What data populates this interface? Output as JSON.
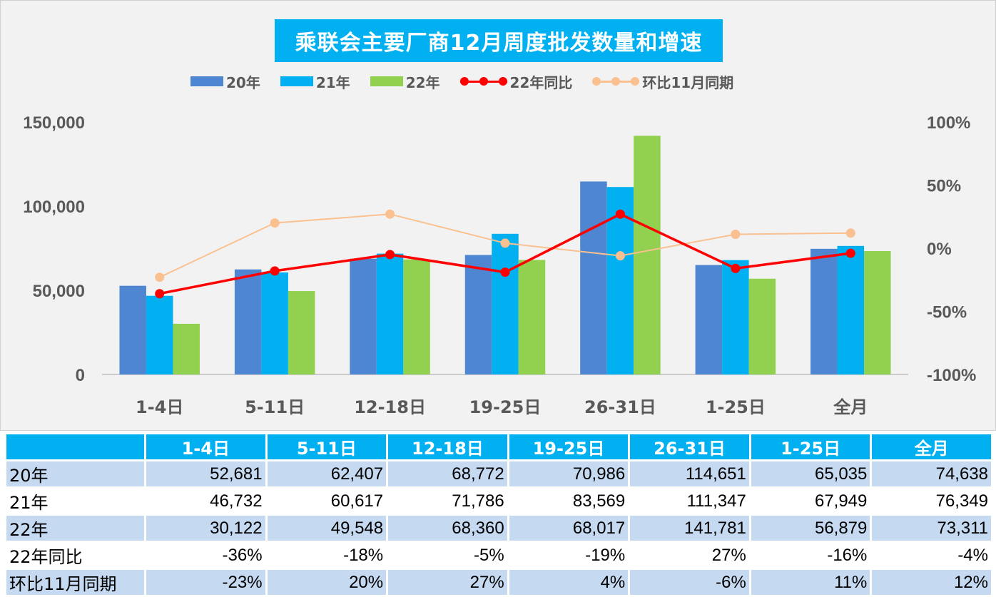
{
  "title": "乘联会主要厂商12月周度批发数量和增速",
  "colors": {
    "s20": "#4f86d1",
    "s21": "#00b0f0",
    "s22": "#92d050",
    "yoy": "#ff0000",
    "mom": "#fac090",
    "header_bg": "#00b0f0",
    "row_shade": "#c5d9f1"
  },
  "chart_data": {
    "type": "bar",
    "categories": [
      "1-4日",
      "5-11日",
      "12-18日",
      "19-25日",
      "26-31日",
      "1-25日",
      "全月"
    ],
    "series": [
      {
        "name": "20年",
        "kind": "bar",
        "axis": "left",
        "values": [
          52681,
          62407,
          68772,
          70986,
          114651,
          65035,
          74638
        ]
      },
      {
        "name": "21年",
        "kind": "bar",
        "axis": "left",
        "values": [
          46732,
          60617,
          71786,
          83569,
          111347,
          67949,
          76349
        ]
      },
      {
        "name": "22年",
        "kind": "bar",
        "axis": "left",
        "values": [
          30122,
          49548,
          68360,
          68017,
          141781,
          56879,
          73311
        ]
      },
      {
        "name": "22年同比",
        "kind": "line",
        "axis": "right",
        "values": [
          -36,
          -18,
          -5,
          -19,
          27,
          -16,
          -4
        ]
      },
      {
        "name": "环比11月同期",
        "kind": "line",
        "axis": "right",
        "values": [
          -23,
          20,
          27,
          4,
          -6,
          11,
          12
        ]
      }
    ],
    "y_left": {
      "range": [
        0,
        150000
      ],
      "ticks": [
        "0",
        "50,000",
        "100,000",
        "150,000"
      ],
      "tick_values": [
        0,
        50000,
        100000,
        150000
      ]
    },
    "y_right": {
      "range": [
        -100,
        100
      ],
      "ticks": [
        "-100%",
        "-50%",
        "0%",
        "50%",
        "100%"
      ],
      "tick_values": [
        -100,
        -50,
        0,
        50,
        100
      ]
    },
    "grid": false,
    "legend_position": "top"
  },
  "legend": [
    "20年",
    "21年",
    "22年",
    "22年同比",
    "环比11月同期"
  ],
  "table": {
    "headers": [
      "",
      "1-4日",
      "5-11日",
      "12-18日",
      "19-25日",
      "26-31日",
      "1-25日",
      "全月"
    ],
    "rows": [
      {
        "label": "20年",
        "cells": [
          "52,681",
          "62,407",
          "68,772",
          "70,986",
          "114,651",
          "65,035",
          "74,638"
        ]
      },
      {
        "label": "21年",
        "cells": [
          "46,732",
          "60,617",
          "71,786",
          "83,569",
          "111,347",
          "67,949",
          "76,349"
        ]
      },
      {
        "label": "22年",
        "cells": [
          "30,122",
          "49,548",
          "68,360",
          "68,017",
          "141,781",
          "56,879",
          "73,311"
        ]
      },
      {
        "label": "22年同比",
        "cells": [
          "-36%",
          "-18%",
          "-5%",
          "-19%",
          "27%",
          "-16%",
          "-4%"
        ]
      },
      {
        "label": "环比11月同期",
        "cells": [
          "-23%",
          "20%",
          "27%",
          "4%",
          "-6%",
          "11%",
          "12%"
        ]
      }
    ]
  }
}
